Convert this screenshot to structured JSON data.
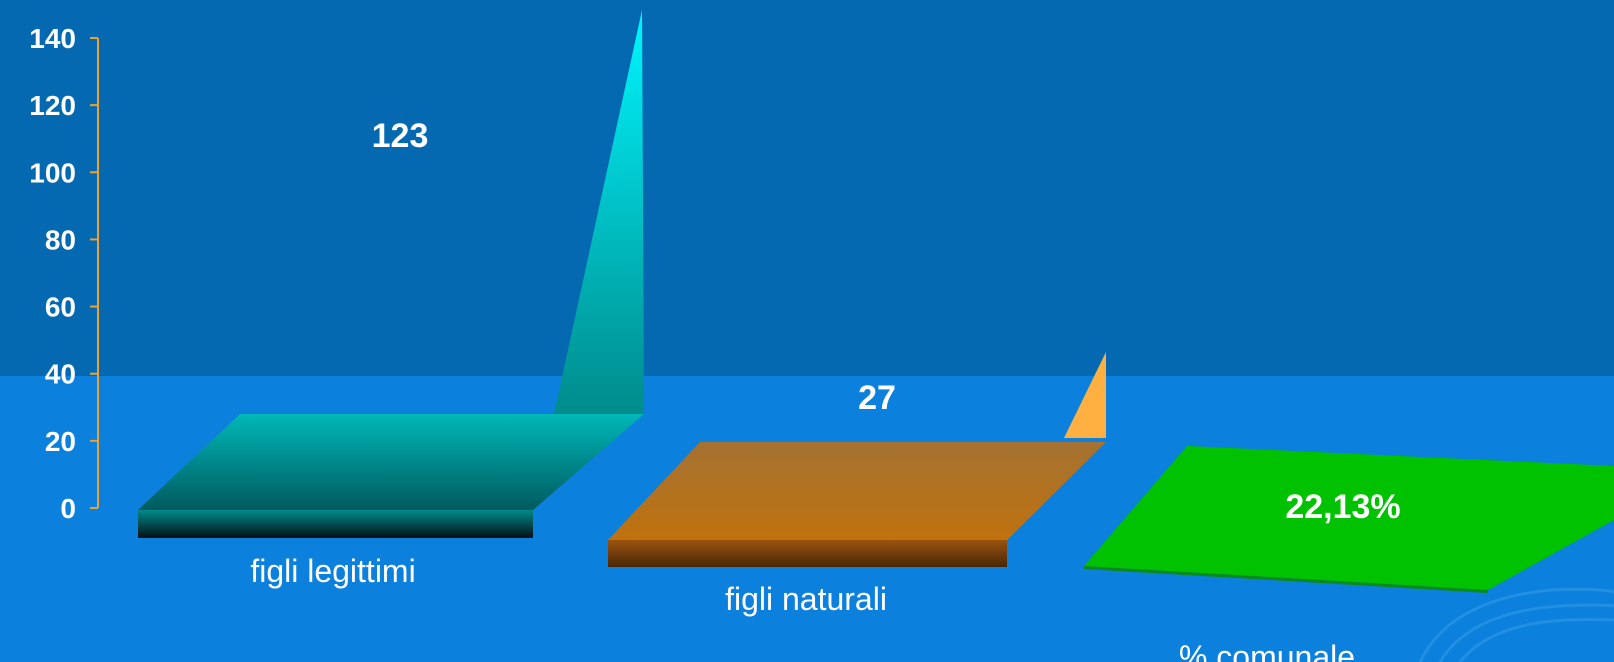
{
  "chart_data": {
    "type": "bar",
    "categories": [
      "figli legittimi",
      "figli naturali",
      "% comunale"
    ],
    "series": [
      {
        "values": [
          123,
          27,
          22.13
        ]
      }
    ],
    "data_labels": [
      "123",
      "27",
      "22,13%"
    ],
    "y_ticks": [
      "0",
      "20",
      "40",
      "60",
      "80",
      "100",
      "120",
      "140"
    ],
    "ylim": [
      0,
      140
    ],
    "grid": false,
    "colors": {
      "axis": "#e8a23a",
      "bar1_top": "#00f2ff",
      "bar1_bottom": "#007f86",
      "bar1_floor": "#00b0b0",
      "bar2_floor": "#a87030",
      "bar2_spike": "#ffb040",
      "bar3_floor": "#00c200",
      "background_top": "#0469b1",
      "background_bottom": "#0b80dc"
    }
  }
}
